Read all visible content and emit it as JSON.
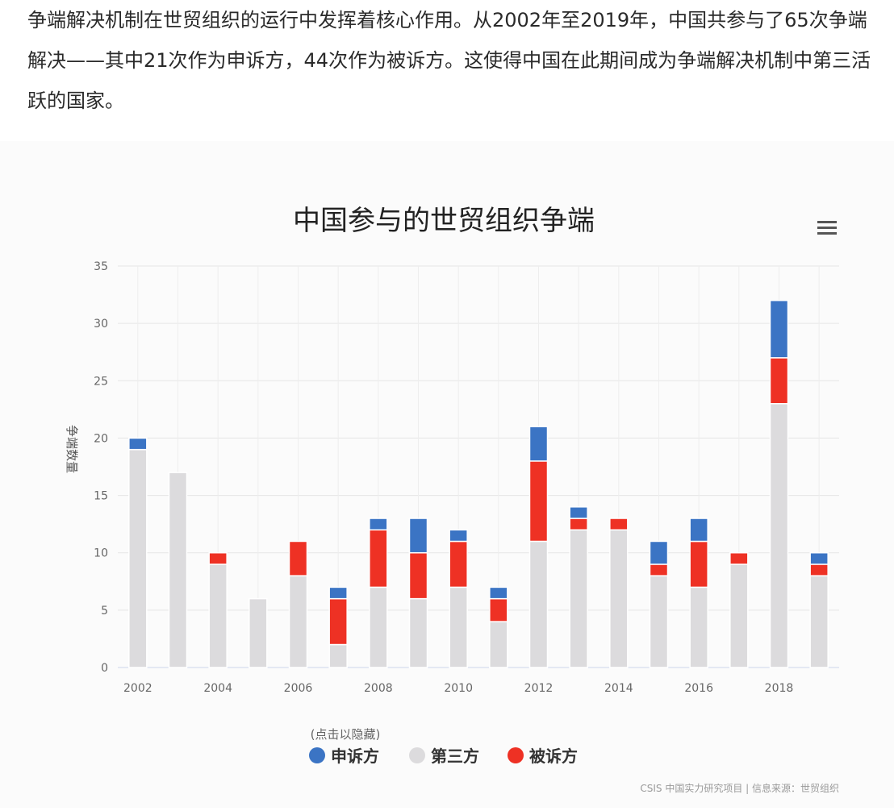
{
  "intro_text": "争端解决机制在世贸组织的运行中发挥着核心作用。从2002年至2019年，中国共参与了65次争端解决——其中21次作为申诉方，44次作为被诉方。这使得中国在此期间成为争端解决机制中第三活跃的国家。",
  "legend_hint": "(点击以隐藏)",
  "source": "CSIS 中国实力研究项目 | 信息来源：世贸组织",
  "colors": {
    "complainant": "#3b74c4",
    "third_party": "#dcdbdd",
    "respondent": "#ee3124"
  },
  "menu_icon": "hamburger-menu-icon",
  "chart_data": {
    "type": "bar",
    "stacked": true,
    "title": "中国参与的世贸组织争端",
    "xlabel": "",
    "ylabel": "争端数量",
    "ylim": [
      0,
      35
    ],
    "yticks": [
      0,
      5,
      10,
      15,
      20,
      25,
      30,
      35
    ],
    "xticks": [
      "2002",
      "2004",
      "2006",
      "2008",
      "2010",
      "2012",
      "2014",
      "2016",
      "2018"
    ],
    "categories": [
      "2002",
      "2003",
      "2004",
      "2005",
      "2006",
      "2007",
      "2008",
      "2009",
      "2010",
      "2011",
      "2012",
      "2013",
      "2014",
      "2015",
      "2016",
      "2017",
      "2018",
      "2019"
    ],
    "series": [
      {
        "name": "第三方",
        "values": [
          19,
          17,
          9,
          6,
          8,
          2,
          7,
          6,
          7,
          4,
          11,
          12,
          12,
          8,
          7,
          9,
          23,
          8
        ]
      },
      {
        "name": "被诉方",
        "values": [
          0,
          0,
          1,
          0,
          3,
          4,
          5,
          4,
          4,
          2,
          7,
          1,
          1,
          1,
          4,
          1,
          4,
          1
        ]
      },
      {
        "name": "申诉方",
        "values": [
          1,
          0,
          0,
          0,
          0,
          1,
          1,
          3,
          1,
          1,
          3,
          1,
          0,
          2,
          2,
          0,
          5,
          1
        ]
      }
    ],
    "legend_position": "bottom-left",
    "grid": true
  }
}
